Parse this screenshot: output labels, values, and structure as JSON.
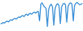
{
  "chart_data": {
    "type": "line",
    "color": "#3a8fd6",
    "categories": [
      null,
      null,
      null,
      null,
      null,
      null,
      null,
      null,
      null,
      null,
      null,
      null,
      null,
      null,
      null,
      null,
      null,
      null,
      null,
      null,
      null,
      null,
      null,
      null,
      null,
      null,
      null,
      null,
      null,
      null,
      null,
      null,
      null,
      null,
      null,
      null,
      null,
      null,
      null,
      null,
      null,
      null,
      null,
      null,
      null,
      null,
      null,
      null,
      null,
      null,
      null,
      null,
      null,
      null,
      null,
      null,
      null,
      null,
      null,
      null,
      null,
      null,
      null,
      null
    ],
    "values": [
      20,
      22,
      25,
      23,
      28,
      30,
      27,
      32,
      35,
      33,
      38,
      40,
      37,
      42,
      45,
      43,
      48,
      50,
      46,
      52,
      55,
      50,
      56,
      58,
      54,
      60,
      62,
      58,
      63,
      65,
      30,
      90,
      95,
      85,
      80,
      75,
      10,
      70,
      85,
      90,
      80,
      15,
      75,
      88,
      92,
      85,
      20,
      80,
      90,
      93,
      88,
      25,
      82,
      92,
      95,
      90,
      30,
      85,
      93,
      96,
      92,
      88,
      90,
      92
    ],
    "ylim": [
      0,
      100
    ],
    "yticks": [
      0,
      100
    ],
    "grid": false,
    "tick_labels": false
  }
}
